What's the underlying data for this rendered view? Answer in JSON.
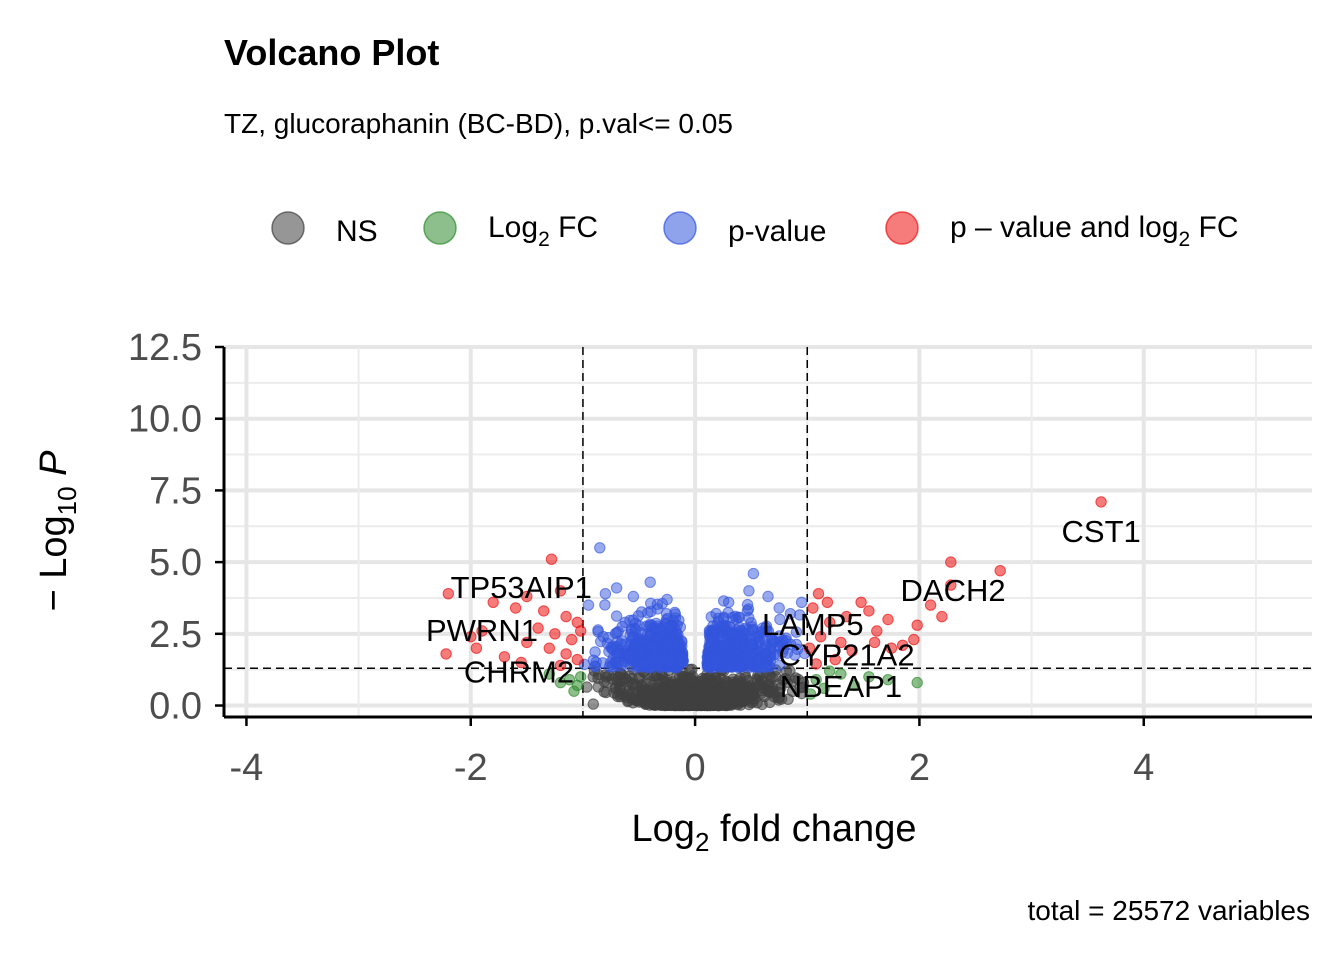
{
  "chart_data": {
    "type": "scatter",
    "title": "Volcano Plot",
    "subtitle": "TZ, glucoraphanin (BC-BD), p.val<= 0.05",
    "caption": "total = 25572 variables",
    "xlabel": {
      "main": "Log",
      "sub": "2",
      "rest": " fold change"
    },
    "ylabel": {
      "pre": "− Log",
      "sub": "10",
      "italic": " P"
    },
    "xlim": [
      -4.2,
      5.5
    ],
    "ylim": [
      -0.4,
      12.5
    ],
    "x_ticks": [
      -4,
      -2,
      0,
      2,
      4
    ],
    "x_tick_labels": [
      "-4",
      "-2",
      "0",
      "2",
      "4"
    ],
    "y_ticks": [
      0,
      2.5,
      5,
      7.5,
      10,
      12.5
    ],
    "y_tick_labels": [
      "0.0",
      "2.5",
      "5.0",
      "7.5",
      "10.0",
      "12.5"
    ],
    "grid": true,
    "legend_position": "top",
    "fc_cutoff": 1,
    "p_cutoff_neglog10": 1.3,
    "colors": {
      "ns": "#404040",
      "fc": "#2e8b2e",
      "p": "#3355dd",
      "both": "#ee1111"
    },
    "legend": [
      {
        "key": "ns",
        "label": "NS"
      },
      {
        "key": "fc",
        "label": "Log",
        "sub": "2",
        "rest": " FC"
      },
      {
        "key": "p",
        "label": "p-value"
      },
      {
        "key": "both",
        "label": "p – value and log",
        "sub": "2",
        "rest": " FC"
      }
    ],
    "labeled_points": [
      {
        "name": "CST1",
        "x": 3.62,
        "y": 7.1,
        "class": "both"
      },
      {
        "name": "DACH2",
        "x": 2.28,
        "y": 5.0,
        "class": "both"
      },
      {
        "name": "TP53AIP1",
        "x": -1.28,
        "y": 5.1,
        "class": "both"
      },
      {
        "name": "PWRN1",
        "x": -2.2,
        "y": 3.9,
        "class": "both"
      },
      {
        "name": "LAMP5",
        "x": 1.08,
        "y": 3.9,
        "class": "both"
      },
      {
        "name": "CYP21A2",
        "x": 1.6,
        "y": 2.4,
        "class": "both"
      },
      {
        "name": "CHRM2",
        "x": -1.12,
        "y": 0.9,
        "class": "fc"
      },
      {
        "name": "NBEAP1",
        "x": 1.98,
        "y": 0.8,
        "class": "fc"
      }
    ],
    "annotations": [
      {
        "text": "CST1",
        "x": 3.62,
        "y": 6.05
      },
      {
        "text": "DACH2",
        "x": 2.3,
        "y": 4.0
      },
      {
        "text": "TP53AIP1",
        "x": -1.55,
        "y": 4.1
      },
      {
        "text": "PWRN1",
        "x": -1.9,
        "y": 2.6
      },
      {
        "text": "LAMP5",
        "x": 1.05,
        "y": 2.8
      },
      {
        "text": "CYP21A2",
        "x": 1.35,
        "y": 1.75
      },
      {
        "text": "CHRM2",
        "x": -1.57,
        "y": 1.15
      },
      {
        "text": "NBEAP1",
        "x": 1.3,
        "y": 0.65
      }
    ],
    "points_both": [
      {
        "x": 3.62,
        "y": 7.1
      },
      {
        "x": 2.28,
        "y": 5.0
      },
      {
        "x": 2.72,
        "y": 4.7
      },
      {
        "x": 2.28,
        "y": 4.2
      },
      {
        "x": 2.1,
        "y": 3.5
      },
      {
        "x": 2.2,
        "y": 3.1
      },
      {
        "x": 1.98,
        "y": 2.8
      },
      {
        "x": 1.95,
        "y": 2.3
      },
      {
        "x": 1.72,
        "y": 3.0
      },
      {
        "x": 1.62,
        "y": 2.6
      },
      {
        "x": 1.48,
        "y": 3.6
      },
      {
        "x": 1.55,
        "y": 3.3
      },
      {
        "x": 1.35,
        "y": 3.1
      },
      {
        "x": 1.2,
        "y": 2.9
      },
      {
        "x": 1.1,
        "y": 3.9
      },
      {
        "x": 1.05,
        "y": 3.4
      },
      {
        "x": 1.12,
        "y": 2.4
      },
      {
        "x": 1.02,
        "y": 2.0
      },
      {
        "x": 1.3,
        "y": 2.2
      },
      {
        "x": 1.4,
        "y": 1.9
      },
      {
        "x": 1.25,
        "y": 1.6
      },
      {
        "x": 1.6,
        "y": 2.2
      },
      {
        "x": 1.75,
        "y": 2.0
      },
      {
        "x": 1.85,
        "y": 2.1
      },
      {
        "x": 1.08,
        "y": 1.45
      },
      {
        "x": 1.18,
        "y": 3.6
      },
      {
        "x": -1.28,
        "y": 5.1
      },
      {
        "x": -1.2,
        "y": 4.0
      },
      {
        "x": -1.5,
        "y": 3.8
      },
      {
        "x": -2.2,
        "y": 3.9
      },
      {
        "x": -1.8,
        "y": 3.6
      },
      {
        "x": -1.6,
        "y": 3.4
      },
      {
        "x": -1.35,
        "y": 3.3
      },
      {
        "x": -1.15,
        "y": 3.1
      },
      {
        "x": -1.05,
        "y": 2.9
      },
      {
        "x": -1.4,
        "y": 2.7
      },
      {
        "x": -1.25,
        "y": 2.5
      },
      {
        "x": -1.1,
        "y": 2.3
      },
      {
        "x": -1.9,
        "y": 2.6
      },
      {
        "x": -2.0,
        "y": 2.4
      },
      {
        "x": -1.5,
        "y": 2.2
      },
      {
        "x": -1.3,
        "y": 2.0
      },
      {
        "x": -1.15,
        "y": 1.8
      },
      {
        "x": -1.05,
        "y": 1.6
      },
      {
        "x": -2.22,
        "y": 1.8
      },
      {
        "x": -1.95,
        "y": 2.0
      },
      {
        "x": -1.7,
        "y": 1.7
      },
      {
        "x": -1.55,
        "y": 1.5
      },
      {
        "x": -1.02,
        "y": 2.6
      },
      {
        "x": -1.2,
        "y": 1.4
      }
    ],
    "points_fc": [
      {
        "x": 1.98,
        "y": 0.8
      },
      {
        "x": 1.72,
        "y": 0.9
      },
      {
        "x": 1.55,
        "y": 1.0
      },
      {
        "x": 1.42,
        "y": 0.7
      },
      {
        "x": 1.3,
        "y": 1.1
      },
      {
        "x": 1.15,
        "y": 0.6
      },
      {
        "x": 1.08,
        "y": 0.9
      },
      {
        "x": 1.2,
        "y": 1.2
      },
      {
        "x": 1.03,
        "y": 0.4
      },
      {
        "x": -1.12,
        "y": 0.9
      },
      {
        "x": -1.05,
        "y": 0.7
      },
      {
        "x": -1.2,
        "y": 0.8
      },
      {
        "x": -1.02,
        "y": 1.0
      },
      {
        "x": -1.3,
        "y": 1.1
      },
      {
        "x": -1.08,
        "y": 0.5
      }
    ],
    "points_p_outliers": [
      {
        "x": -0.85,
        "y": 5.5
      },
      {
        "x": -0.4,
        "y": 4.3
      },
      {
        "x": -0.7,
        "y": 4.1
      },
      {
        "x": -0.55,
        "y": 3.8
      },
      {
        "x": -0.8,
        "y": 3.9
      },
      {
        "x": -0.25,
        "y": 3.7
      },
      {
        "x": 0.52,
        "y": 4.6
      },
      {
        "x": 0.48,
        "y": 4.0
      },
      {
        "x": 0.3,
        "y": 3.6
      },
      {
        "x": 0.65,
        "y": 3.8
      },
      {
        "x": 0.75,
        "y": 3.4
      },
      {
        "x": 0.85,
        "y": 3.2
      },
      {
        "x": -0.95,
        "y": 3.5
      },
      {
        "x": 0.95,
        "y": 3.6
      }
    ]
  }
}
